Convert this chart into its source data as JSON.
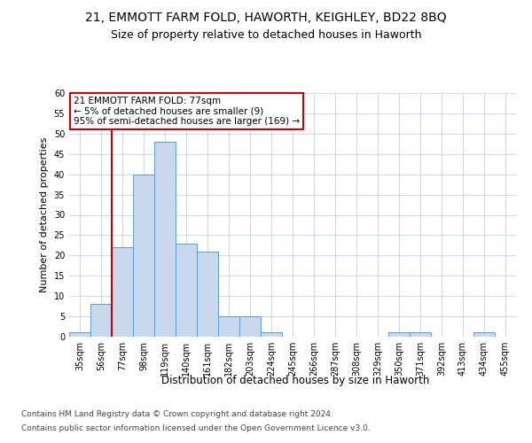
{
  "title1": "21, EMMOTT FARM FOLD, HAWORTH, KEIGHLEY, BD22 8BQ",
  "title2": "Size of property relative to detached houses in Haworth",
  "xlabel": "Distribution of detached houses by size in Haworth",
  "ylabel": "Number of detached properties",
  "bins": [
    "35sqm",
    "56sqm",
    "77sqm",
    "98sqm",
    "119sqm",
    "140sqm",
    "161sqm",
    "182sqm",
    "203sqm",
    "224sqm",
    "245sqm",
    "266sqm",
    "287sqm",
    "308sqm",
    "329sqm",
    "350sqm",
    "371sqm",
    "392sqm",
    "413sqm",
    "434sqm",
    "455sqm"
  ],
  "values": [
    1,
    8,
    22,
    40,
    48,
    23,
    21,
    5,
    5,
    1,
    0,
    0,
    0,
    0,
    0,
    1,
    1,
    0,
    0,
    1,
    0
  ],
  "bar_color": "#c9d9ed",
  "bar_edge_color": "#5b9bd5",
  "property_line_x": 2,
  "property_line_color": "#cc0000",
  "annotation_text": "21 EMMOTT FARM FOLD: 77sqm\n← 5% of detached houses are smaller (9)\n95% of semi-detached houses are larger (169) →",
  "annotation_box_color": "#ffffff",
  "annotation_box_edge": "#cc0000",
  "ylim": [
    0,
    60
  ],
  "yticks": [
    0,
    5,
    10,
    15,
    20,
    25,
    30,
    35,
    40,
    45,
    50,
    55,
    60
  ],
  "footer1": "Contains HM Land Registry data © Crown copyright and database right 2024.",
  "footer2": "Contains public sector information licensed under the Open Government Licence v3.0.",
  "bg_color": "#ffffff",
  "grid_color": "#d0d8e8",
  "title1_fontsize": 10,
  "title2_fontsize": 9,
  "xlabel_fontsize": 8.5,
  "ylabel_fontsize": 8,
  "tick_fontsize": 7,
  "footer_fontsize": 6.5,
  "annotation_fontsize": 7.5
}
